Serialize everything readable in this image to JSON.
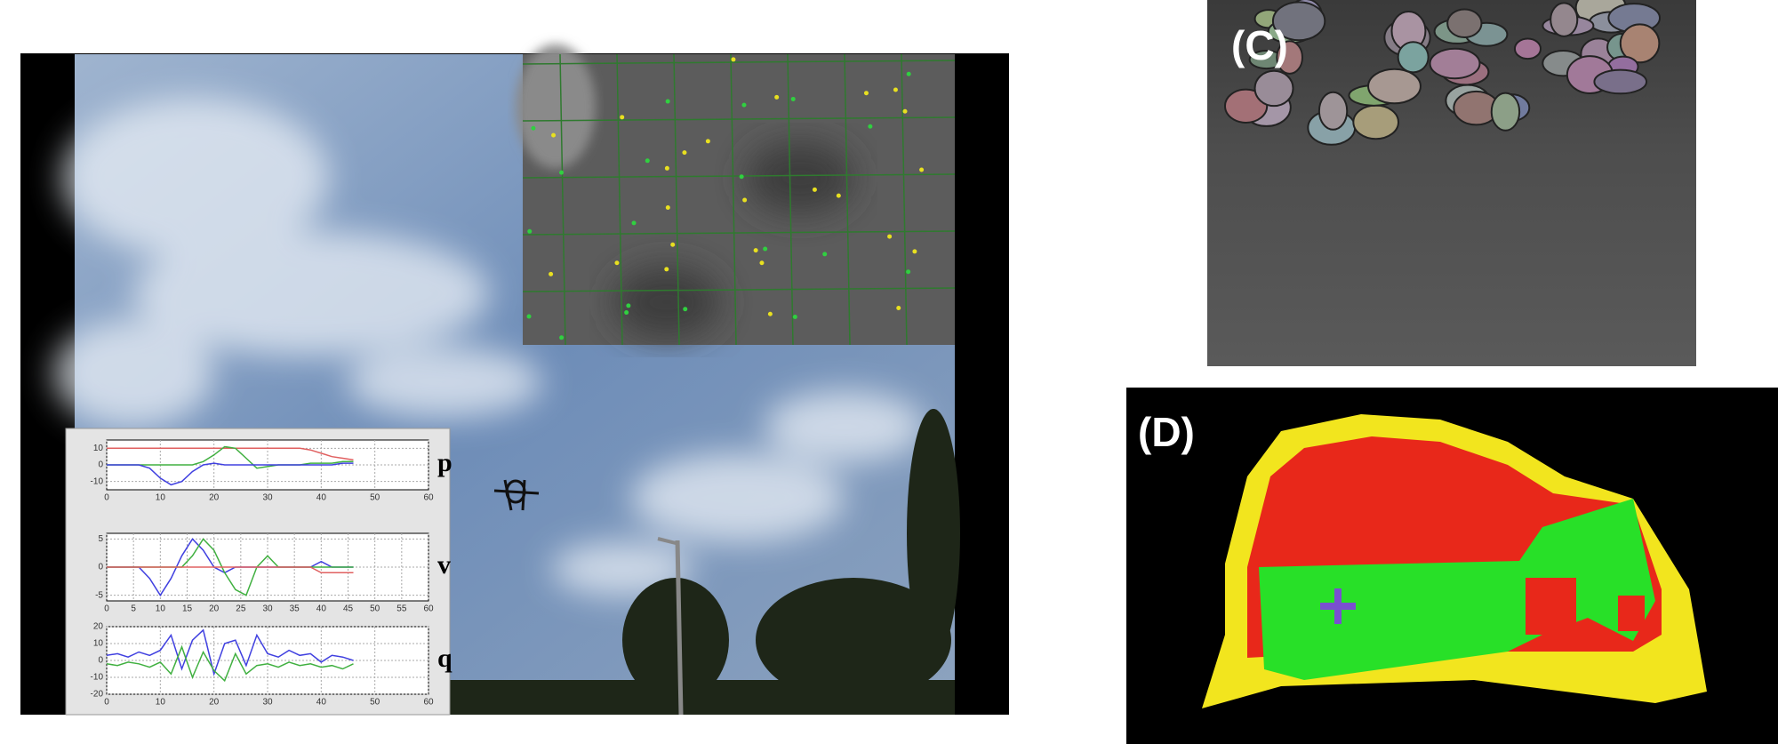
{
  "panels": {
    "c": {
      "label": "(C)"
    },
    "d": {
      "label": "(D)"
    }
  },
  "plots": [
    {
      "label": "p",
      "xlim": [
        0,
        60
      ],
      "xticks": [
        0,
        10,
        20,
        30,
        40,
        50,
        60
      ],
      "ylim": [
        -15,
        15
      ],
      "yticks": [
        -10,
        0,
        10
      ],
      "grid": true,
      "x": [
        0,
        2,
        4,
        6,
        8,
        10,
        12,
        14,
        16,
        18,
        20,
        22,
        24,
        26,
        28,
        30,
        32,
        34,
        36,
        38,
        40,
        42,
        44,
        46
      ],
      "series": [
        {
          "color": "#e06060",
          "values": [
            10,
            10,
            10,
            10,
            10,
            10,
            10,
            10,
            10,
            10,
            10,
            10,
            10,
            10,
            10,
            10,
            10,
            10,
            10,
            9,
            7,
            5,
            4,
            3
          ]
        },
        {
          "color": "#40b040",
          "values": [
            0,
            0,
            0,
            0,
            0,
            0,
            0,
            0,
            0,
            2,
            6,
            11,
            10,
            4,
            -2,
            -1,
            0,
            0,
            0,
            1,
            1,
            1,
            2,
            2
          ]
        },
        {
          "color": "#4040e0",
          "values": [
            0,
            0,
            0,
            0,
            -2,
            -8,
            -12,
            -10,
            -4,
            0,
            1,
            0,
            0,
            0,
            0,
            0,
            0,
            0,
            0,
            0,
            0,
            0,
            1,
            1
          ]
        }
      ]
    },
    {
      "label": "v",
      "xlim": [
        0,
        60
      ],
      "xticks": [
        0,
        5,
        10,
        15,
        20,
        25,
        30,
        35,
        40,
        45,
        50,
        55,
        60
      ],
      "ylim": [
        -6,
        6
      ],
      "yticks": [
        -5,
        0,
        5
      ],
      "grid": true,
      "x": [
        0,
        2,
        4,
        6,
        8,
        10,
        12,
        14,
        16,
        18,
        20,
        22,
        24,
        26,
        28,
        30,
        32,
        34,
        36,
        38,
        40,
        42,
        44,
        46
      ],
      "series": [
        {
          "color": "#4040e0",
          "values": [
            0,
            0,
            0,
            0,
            -2,
            -5,
            -2,
            2,
            5,
            3,
            0,
            -1,
            0,
            0,
            0,
            0,
            0,
            0,
            0,
            0,
            1,
            0,
            0,
            0
          ]
        },
        {
          "color": "#40b040",
          "values": [
            0,
            0,
            0,
            0,
            0,
            0,
            0,
            0,
            2,
            5,
            3,
            -1,
            -4,
            -5,
            0,
            2,
            0,
            0,
            0,
            0,
            0,
            0,
            0,
            0
          ]
        },
        {
          "color": "#e06060",
          "values": [
            0,
            0,
            0,
            0,
            0,
            0,
            0,
            0,
            0,
            0,
            0,
            0,
            0,
            0,
            0,
            0,
            0,
            0,
            0,
            0,
            -1,
            -1,
            -1,
            -1
          ]
        }
      ]
    },
    {
      "label": "q",
      "xlim": [
        0,
        60
      ],
      "xticks": [
        0,
        10,
        20,
        30,
        40,
        50,
        60
      ],
      "ylim": [
        -20,
        20
      ],
      "yticks": [
        -20,
        -10,
        0,
        10,
        20
      ],
      "grid": true,
      "x": [
        0,
        2,
        4,
        6,
        8,
        10,
        12,
        14,
        16,
        18,
        20,
        22,
        24,
        26,
        28,
        30,
        32,
        34,
        36,
        38,
        40,
        42,
        44,
        46
      ],
      "series": [
        {
          "color": "#4040e0",
          "values": [
            3,
            4,
            2,
            5,
            3,
            6,
            15,
            -5,
            12,
            18,
            -8,
            10,
            12,
            -3,
            15,
            4,
            2,
            6,
            3,
            4,
            -1,
            3,
            2,
            0
          ]
        },
        {
          "color": "#40b040",
          "values": [
            -2,
            -3,
            -1,
            -2,
            -4,
            -1,
            -8,
            8,
            -10,
            5,
            -6,
            -12,
            4,
            -8,
            -3,
            -2,
            -4,
            -1,
            -3,
            -2,
            -4,
            -3,
            -5,
            -2
          ]
        }
      ]
    }
  ]
}
